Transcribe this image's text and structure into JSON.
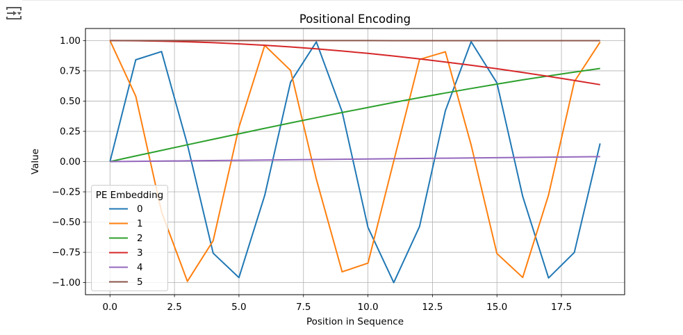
{
  "page": {
    "background": "#ffffff",
    "top_border_color": "#e9e9e9"
  },
  "toolbar": {
    "icon": "insert-output-arrow-icon",
    "icon_color": "#595959"
  },
  "chart_data": {
    "type": "line",
    "title": "Positional Encoding",
    "xlabel": "Position in Sequence",
    "ylabel": "Value",
    "xlim": [
      -0.95,
      19.95
    ],
    "ylim": [
      -1.1,
      1.1
    ],
    "grid": true,
    "grid_color": "#b0b0b0",
    "spine_color": "#000000",
    "background": "#ffffff",
    "xticks": [
      0,
      2.5,
      5,
      7.5,
      10,
      12.5,
      15,
      17.5
    ],
    "xtick_labels": [
      "0.0",
      "2.5",
      "5.0",
      "7.5",
      "10.0",
      "12.5",
      "15.0",
      "17.5"
    ],
    "yticks": [
      1.0,
      0.75,
      0.5,
      0.25,
      0.0,
      -0.25,
      -0.5,
      -0.75,
      -1.0
    ],
    "ytick_labels": [
      "1.00",
      "0.75",
      "0.50",
      "0.25",
      "0.00",
      "−0.25",
      "−0.50",
      "−0.75",
      "−1.00"
    ],
    "x": [
      0,
      1,
      2,
      3,
      4,
      5,
      6,
      7,
      8,
      9,
      10,
      11,
      12,
      13,
      14,
      15,
      16,
      17,
      18,
      19
    ],
    "legend": {
      "title": "PE Embedding",
      "position": "lower left",
      "border_color": "#cccccc",
      "background": "rgba(255,255,255,0.8)"
    },
    "series": [
      {
        "name": "0",
        "color": "#1f77b4",
        "values": [
          0.0,
          0.8415,
          0.9093,
          0.1411,
          -0.7568,
          -0.9589,
          -0.2794,
          0.657,
          0.9894,
          0.4121,
          -0.544,
          -1.0,
          -0.5366,
          0.4202,
          0.9906,
          0.6503,
          -0.2879,
          -0.9614,
          -0.751,
          0.1499
        ]
      },
      {
        "name": "1",
        "color": "#ff7f0e",
        "values": [
          1.0,
          0.5403,
          -0.4161,
          -0.99,
          -0.6536,
          0.2837,
          0.9602,
          0.7539,
          -0.1455,
          -0.9111,
          -0.8391,
          0.0044,
          0.8439,
          0.9074,
          0.1367,
          -0.7597,
          -0.9577,
          -0.2752,
          0.6603,
          0.9887
        ]
      },
      {
        "name": "2",
        "color": "#2ca02c",
        "values": [
          0.0,
          0.0464,
          0.0927,
          0.1388,
          0.1846,
          0.23,
          0.2749,
          0.3192,
          0.3628,
          0.4056,
          0.4476,
          0.4886,
          0.5284,
          0.5671,
          0.6045,
          0.6406,
          0.6753,
          0.7084,
          0.7399,
          0.7696
        ]
      },
      {
        "name": "3",
        "color": "#d62728",
        "values": [
          1.0,
          0.9989,
          0.9957,
          0.9903,
          0.9828,
          0.9732,
          0.9615,
          0.9477,
          0.9319,
          0.914,
          0.8942,
          0.8724,
          0.8488,
          0.8234,
          0.7961,
          0.7672,
          0.7366,
          0.7044,
          0.6708,
          0.636
        ]
      },
      {
        "name": "4",
        "color": "#9467bd",
        "values": [
          0.0,
          0.0022,
          0.0043,
          0.0065,
          0.0086,
          0.0108,
          0.0129,
          0.0151,
          0.0172,
          0.0194,
          0.0215,
          0.0237,
          0.0259,
          0.028,
          0.0302,
          0.0323,
          0.0345,
          0.0366,
          0.0388,
          0.0409
        ]
      },
      {
        "name": "5",
        "color": "#8c564b",
        "values": [
          1.0,
          1.0,
          1.0,
          1.0,
          1.0,
          0.9999,
          0.9999,
          0.9999,
          0.9999,
          0.9998,
          0.9998,
          0.9997,
          0.9997,
          0.9996,
          0.9995,
          0.9995,
          0.9994,
          0.9993,
          0.9993,
          0.9992
        ]
      }
    ]
  }
}
